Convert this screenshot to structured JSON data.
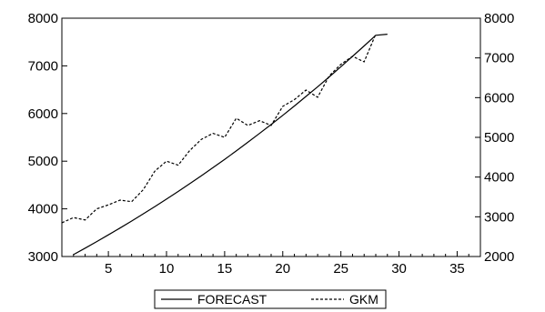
{
  "chart_data": {
    "type": "line",
    "title": "",
    "xlabel": "",
    "ylabel": "",
    "xlim": [
      1,
      37
    ],
    "ylim_left": [
      3000,
      8000
    ],
    "ylim_right": [
      2000,
      8000
    ],
    "x_ticks": [
      "5",
      "10",
      "15",
      "20",
      "25",
      "30",
      "35"
    ],
    "left_ticks": [
      "3000",
      "4000",
      "5000",
      "6000",
      "7000",
      "8000"
    ],
    "right_ticks": [
      "2000",
      "3000",
      "4000",
      "5000",
      "6000",
      "7000",
      "8000"
    ],
    "grid": false,
    "legend": {
      "placement": "bottom-center",
      "entries": [
        "FORECAST",
        "GKM"
      ]
    },
    "series": [
      {
        "name": "FORECAST",
        "style": "solid",
        "axis": "left",
        "color": "#000000",
        "x": [
          2,
          3,
          4,
          5,
          6,
          7,
          8,
          9,
          10,
          11,
          12,
          13,
          14,
          15,
          16,
          17,
          18,
          19,
          20,
          21,
          22,
          23,
          24,
          25,
          26,
          27,
          28,
          29
        ],
        "values": [
          3040,
          3175,
          3313,
          3454,
          3598,
          3745,
          3895,
          4048,
          4205,
          4365,
          4528,
          4695,
          4865,
          5039,
          5216,
          5397,
          5582,
          5770,
          5962,
          6158,
          6358,
          6562,
          6770,
          6982,
          7198,
          7418,
          7642,
          7664
        ]
      },
      {
        "name": "GKM",
        "style": "dashed",
        "axis": "right",
        "color": "#000000",
        "x": [
          1,
          2,
          3,
          4,
          5,
          6,
          7,
          8,
          9,
          10,
          11,
          12,
          13,
          14,
          15,
          16,
          17,
          18,
          19,
          20,
          21,
          22,
          23,
          24,
          25,
          26,
          27,
          28
        ],
        "values": [
          2850,
          2980,
          2920,
          3200,
          3300,
          3420,
          3380,
          3680,
          4150,
          4400,
          4300,
          4670,
          4950,
          5100,
          5000,
          5480,
          5300,
          5420,
          5300,
          5780,
          5950,
          6190,
          6010,
          6550,
          6840,
          7040,
          6900,
          7600
        ]
      }
    ]
  }
}
